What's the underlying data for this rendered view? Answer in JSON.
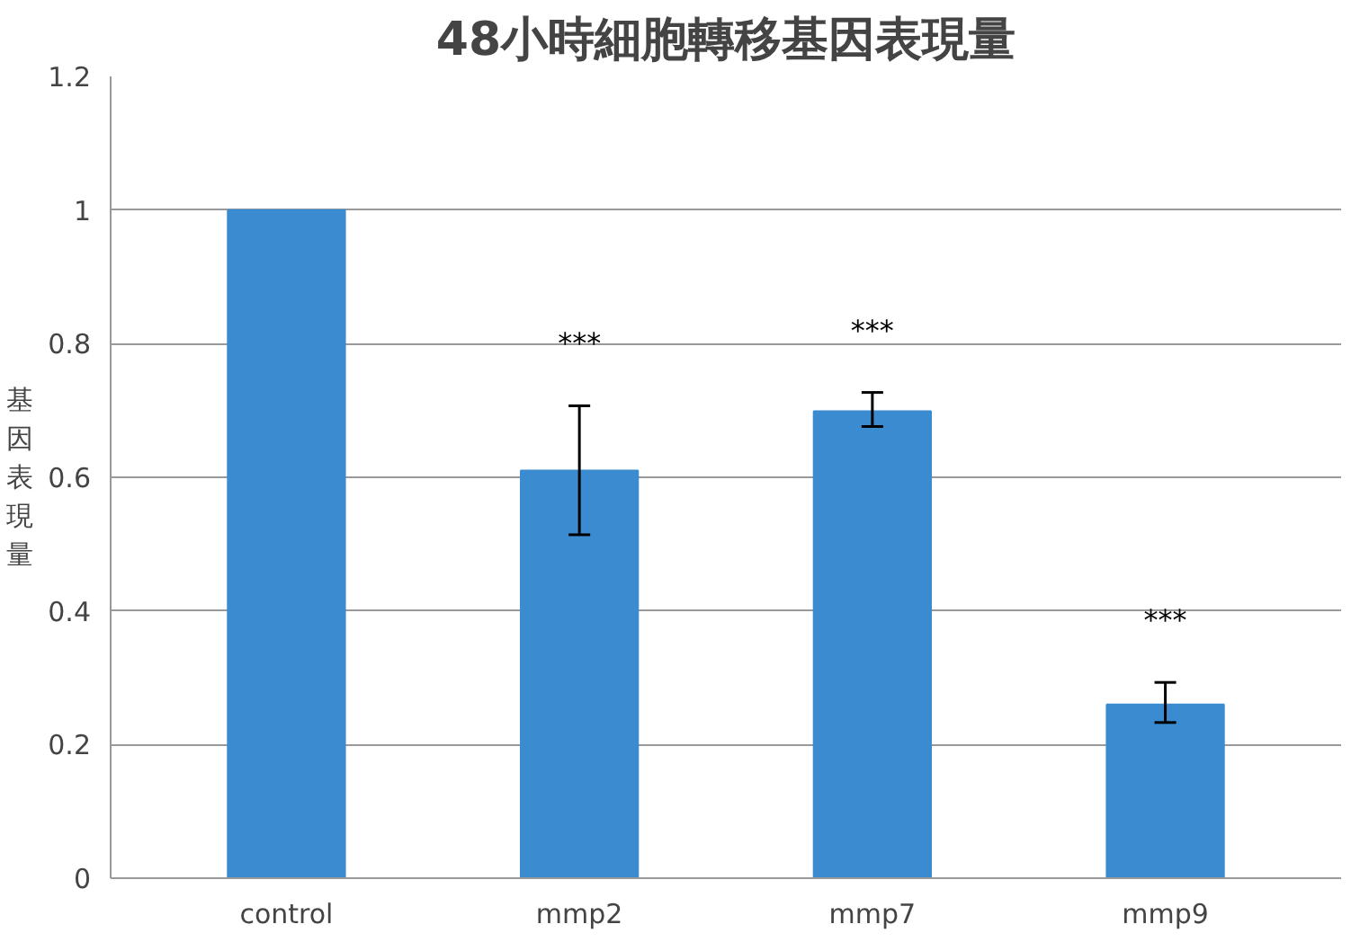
{
  "chart_data": {
    "type": "bar",
    "title": "48小時細胞轉移基因表現量",
    "ylabel": "基因表現量",
    "categories": [
      "control",
      "mmp2",
      "mmp7",
      "mmp9"
    ],
    "values": [
      1.0,
      0.61,
      0.699,
      0.26
    ],
    "errors": [
      null,
      [
        0.514,
        0.707
      ],
      [
        0.676,
        0.727
      ],
      [
        0.233,
        0.293
      ]
    ],
    "color": "#3a8bd0",
    "ylim": [
      0,
      1.2
    ],
    "yticks": [
      0,
      0.2,
      0.4,
      0.6,
      0.8,
      1,
      1.2
    ],
    "grid": "y",
    "annotations": [
      "***",
      "***",
      "***"
    ]
  }
}
